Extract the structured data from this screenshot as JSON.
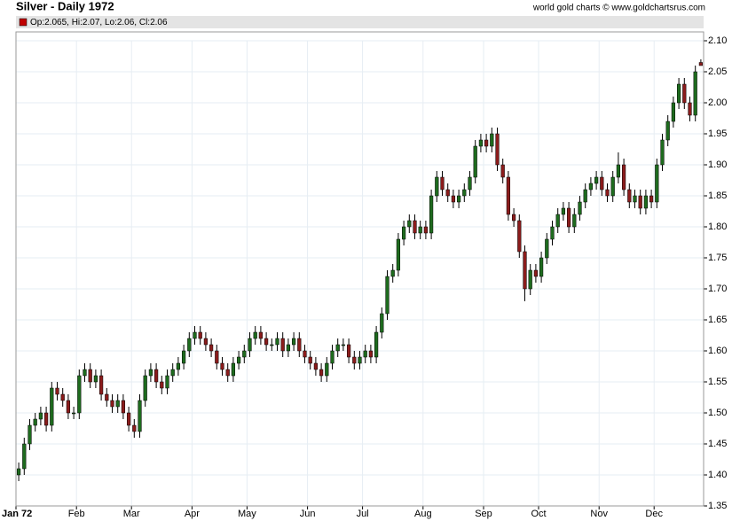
{
  "chart_data": {
    "type": "candlestick",
    "title": "Silver - Daily 1972",
    "source": "world gold charts © www.goldchartsrus.com",
    "legend_text": "Op:2.065, Hi:2.07, Lo:2.06, Cl:2.06",
    "legend_color": "#c00000",
    "up_color": "#1e6b1e",
    "down_color": "#8b1c1c",
    "grid": true,
    "categories": [
      "Jan 72",
      null,
      null,
      null,
      null,
      null,
      null,
      null,
      null,
      null,
      null,
      "Feb",
      null,
      null,
      null,
      null,
      null,
      null,
      null,
      null,
      null,
      "Mar",
      null,
      null,
      null,
      null,
      null,
      null,
      null,
      null,
      null,
      null,
      "Apr",
      null,
      null,
      null,
      null,
      null,
      null,
      null,
      null,
      null,
      "May",
      null,
      null,
      null,
      null,
      null,
      null,
      null,
      null,
      null,
      null,
      "Jun",
      null,
      null,
      null,
      null,
      null,
      null,
      null,
      null,
      null,
      "Jul",
      null,
      null,
      null,
      null,
      null,
      null,
      null,
      null,
      null,
      null,
      "Aug",
      null,
      null,
      null,
      null,
      null,
      null,
      null,
      null,
      null,
      null,
      "Sep",
      null,
      null,
      null,
      null,
      null,
      null,
      null,
      null,
      null,
      "Oct",
      null,
      null,
      null,
      null,
      null,
      null,
      null,
      null,
      null,
      null,
      "Nov",
      null,
      null,
      null,
      null,
      null,
      null,
      null,
      null,
      null,
      "Dec",
      null,
      null,
      null,
      null,
      null,
      null,
      null,
      null
    ],
    "open": [
      1.4,
      1.41,
      1.45,
      1.48,
      1.49,
      1.5,
      1.48,
      1.54,
      1.53,
      1.52,
      1.5,
      1.5,
      1.56,
      1.57,
      1.55,
      1.56,
      1.53,
      1.52,
      1.51,
      1.52,
      1.5,
      1.48,
      1.47,
      1.52,
      1.56,
      1.57,
      1.55,
      1.54,
      1.56,
      1.57,
      1.58,
      1.6,
      1.62,
      1.63,
      1.62,
      1.61,
      1.6,
      1.58,
      1.57,
      1.56,
      1.58,
      1.59,
      1.6,
      1.62,
      1.63,
      1.62,
      1.61,
      1.61,
      1.62,
      1.6,
      1.61,
      1.62,
      1.6,
      1.59,
      1.58,
      1.57,
      1.56,
      1.58,
      1.6,
      1.61,
      1.61,
      1.59,
      1.58,
      1.59,
      1.6,
      1.59,
      1.63,
      1.66,
      1.72,
      1.73,
      1.78,
      1.8,
      1.81,
      1.79,
      1.8,
      1.79,
      1.85,
      1.88,
      1.86,
      1.85,
      1.84,
      1.85,
      1.86,
      1.88,
      1.93,
      1.94,
      1.93,
      1.95,
      1.9,
      1.88,
      1.82,
      1.81,
      1.76,
      1.7,
      1.73,
      1.72,
      1.75,
      1.78,
      1.8,
      1.82,
      1.83,
      1.8,
      1.82,
      1.84,
      1.86,
      1.87,
      1.88,
      1.86,
      1.85,
      1.88,
      1.9,
      1.86,
      1.84,
      1.85,
      1.83,
      1.85,
      1.84,
      1.9,
      1.94,
      1.97,
      2.0,
      2.03,
      2.0,
      1.98,
      2.065
    ],
    "high": [
      1.42,
      1.46,
      1.49,
      1.5,
      1.51,
      1.51,
      1.55,
      1.55,
      1.54,
      1.53,
      1.51,
      1.57,
      1.58,
      1.58,
      1.57,
      1.57,
      1.54,
      1.53,
      1.53,
      1.53,
      1.51,
      1.49,
      1.53,
      1.57,
      1.58,
      1.58,
      1.56,
      1.57,
      1.58,
      1.59,
      1.61,
      1.63,
      1.64,
      1.64,
      1.63,
      1.62,
      1.61,
      1.59,
      1.58,
      1.59,
      1.6,
      1.61,
      1.63,
      1.64,
      1.64,
      1.63,
      1.62,
      1.63,
      1.63,
      1.62,
      1.63,
      1.63,
      1.61,
      1.6,
      1.59,
      1.58,
      1.59,
      1.61,
      1.62,
      1.62,
      1.62,
      1.6,
      1.6,
      1.61,
      1.61,
      1.64,
      1.67,
      1.73,
      1.74,
      1.79,
      1.81,
      1.82,
      1.82,
      1.81,
      1.81,
      1.86,
      1.89,
      1.89,
      1.87,
      1.86,
      1.86,
      1.87,
      1.89,
      1.94,
      1.95,
      1.95,
      1.96,
      1.96,
      1.91,
      1.89,
      1.83,
      1.82,
      1.77,
      1.74,
      1.74,
      1.76,
      1.79,
      1.81,
      1.83,
      1.84,
      1.84,
      1.83,
      1.85,
      1.87,
      1.88,
      1.89,
      1.89,
      1.87,
      1.89,
      1.92,
      1.91,
      1.87,
      1.86,
      1.86,
      1.86,
      1.86,
      1.91,
      1.95,
      1.98,
      2.01,
      2.04,
      2.04,
      2.01,
      2.06,
      2.07
    ],
    "low": [
      1.39,
      1.4,
      1.44,
      1.47,
      1.48,
      1.47,
      1.47,
      1.52,
      1.51,
      1.49,
      1.49,
      1.49,
      1.55,
      1.54,
      1.54,
      1.52,
      1.51,
      1.5,
      1.5,
      1.49,
      1.47,
      1.46,
      1.46,
      1.51,
      1.55,
      1.54,
      1.53,
      1.53,
      1.55,
      1.56,
      1.57,
      1.59,
      1.61,
      1.61,
      1.6,
      1.59,
      1.57,
      1.56,
      1.55,
      1.55,
      1.57,
      1.58,
      1.59,
      1.61,
      1.61,
      1.6,
      1.6,
      1.6,
      1.59,
      1.59,
      1.6,
      1.59,
      1.58,
      1.57,
      1.56,
      1.55,
      1.55,
      1.57,
      1.59,
      1.6,
      1.58,
      1.57,
      1.57,
      1.58,
      1.58,
      1.58,
      1.62,
      1.65,
      1.71,
      1.72,
      1.77,
      1.79,
      1.78,
      1.78,
      1.78,
      1.78,
      1.84,
      1.85,
      1.84,
      1.83,
      1.83,
      1.84,
      1.85,
      1.87,
      1.92,
      1.92,
      1.92,
      1.89,
      1.87,
      1.81,
      1.8,
      1.75,
      1.68,
      1.69,
      1.71,
      1.71,
      1.74,
      1.77,
      1.79,
      1.81,
      1.79,
      1.79,
      1.81,
      1.83,
      1.85,
      1.86,
      1.85,
      1.84,
      1.84,
      1.87,
      1.85,
      1.83,
      1.83,
      1.82,
      1.82,
      1.83,
      1.83,
      1.89,
      1.93,
      1.96,
      1.99,
      1.99,
      1.97,
      1.97,
      2.06
    ],
    "close": [
      1.41,
      1.45,
      1.48,
      1.49,
      1.5,
      1.48,
      1.54,
      1.53,
      1.52,
      1.5,
      1.5,
      1.56,
      1.57,
      1.55,
      1.56,
      1.53,
      1.52,
      1.51,
      1.52,
      1.5,
      1.48,
      1.47,
      1.52,
      1.56,
      1.57,
      1.55,
      1.54,
      1.56,
      1.57,
      1.58,
      1.6,
      1.62,
      1.63,
      1.62,
      1.61,
      1.6,
      1.58,
      1.57,
      1.56,
      1.58,
      1.59,
      1.6,
      1.62,
      1.63,
      1.62,
      1.61,
      1.61,
      1.62,
      1.6,
      1.61,
      1.62,
      1.6,
      1.59,
      1.58,
      1.57,
      1.56,
      1.58,
      1.6,
      1.61,
      1.61,
      1.59,
      1.58,
      1.59,
      1.6,
      1.59,
      1.63,
      1.66,
      1.72,
      1.73,
      1.78,
      1.8,
      1.81,
      1.79,
      1.8,
      1.79,
      1.85,
      1.88,
      1.86,
      1.85,
      1.84,
      1.85,
      1.86,
      1.88,
      1.93,
      1.94,
      1.93,
      1.95,
      1.9,
      1.88,
      1.82,
      1.81,
      1.76,
      1.7,
      1.73,
      1.72,
      1.75,
      1.78,
      1.8,
      1.82,
      1.83,
      1.8,
      1.82,
      1.84,
      1.86,
      1.87,
      1.88,
      1.86,
      1.85,
      1.88,
      1.9,
      1.86,
      1.84,
      1.85,
      1.83,
      1.85,
      1.84,
      1.9,
      1.94,
      1.97,
      2.0,
      2.03,
      2.0,
      1.98,
      2.05,
      2.06
    ],
    "ylim": [
      1.35,
      2.1
    ],
    "yticks": [
      {
        "value": 1.35,
        "label": "1.35"
      },
      {
        "value": 1.4,
        "label": "1.40"
      },
      {
        "value": 1.45,
        "label": "1.45"
      },
      {
        "value": 1.5,
        "label": "1.50"
      },
      {
        "value": 1.55,
        "label": "1.55"
      },
      {
        "value": 1.6,
        "label": "1.60"
      },
      {
        "value": 1.65,
        "label": "1.65"
      },
      {
        "value": 1.7,
        "label": "1.70"
      },
      {
        "value": 1.75,
        "label": "1.75"
      },
      {
        "value": 1.8,
        "label": "1.80"
      },
      {
        "value": 1.85,
        "label": "1.85"
      },
      {
        "value": 1.9,
        "label": "1.90"
      },
      {
        "value": 1.95,
        "label": "1.95"
      },
      {
        "value": 2.0,
        "label": "2.00"
      },
      {
        "value": 2.05,
        "label": "2.05"
      },
      {
        "value": 2.1,
        "label": "2.10"
      }
    ]
  }
}
